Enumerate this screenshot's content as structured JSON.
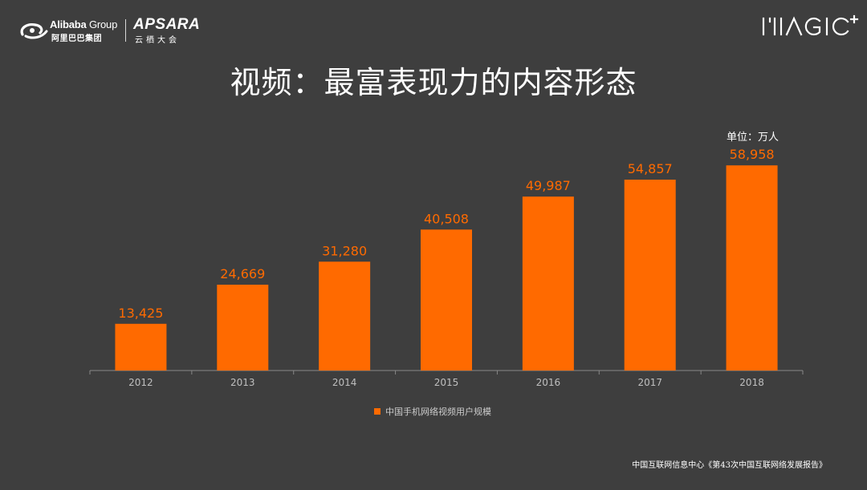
{
  "header": {
    "alibaba": {
      "brand": "Alibaba",
      "group": "Group",
      "cn": "阿里巴巴集团"
    },
    "apsara": {
      "word": "APSARA",
      "cn": "云栖大会"
    },
    "magic": {
      "text": "MAGIC+"
    }
  },
  "title": "视频：最富表现力的内容形态",
  "unit_label": "单位：万人",
  "source": "中国互联网信息中心《第43次中国互联网络发展报告》",
  "colors": {
    "bar": "#ff6a00",
    "background": "#3e3e3e",
    "axis": "#888888"
  },
  "chart_data": {
    "type": "bar",
    "categories": [
      "2012",
      "2013",
      "2014",
      "2015",
      "2016",
      "2017",
      "2018"
    ],
    "series": [
      {
        "name": "中国手机网络视频用户规模",
        "values": [
          13425,
          24669,
          31280,
          40508,
          49987,
          54857,
          58958
        ]
      }
    ],
    "value_labels": [
      "13,425",
      "24,669",
      "31,280",
      "40,508",
      "49,987",
      "54,857",
      "58,958"
    ],
    "ylim": [
      0,
      65000
    ],
    "grid": false,
    "legend": "bottom"
  }
}
